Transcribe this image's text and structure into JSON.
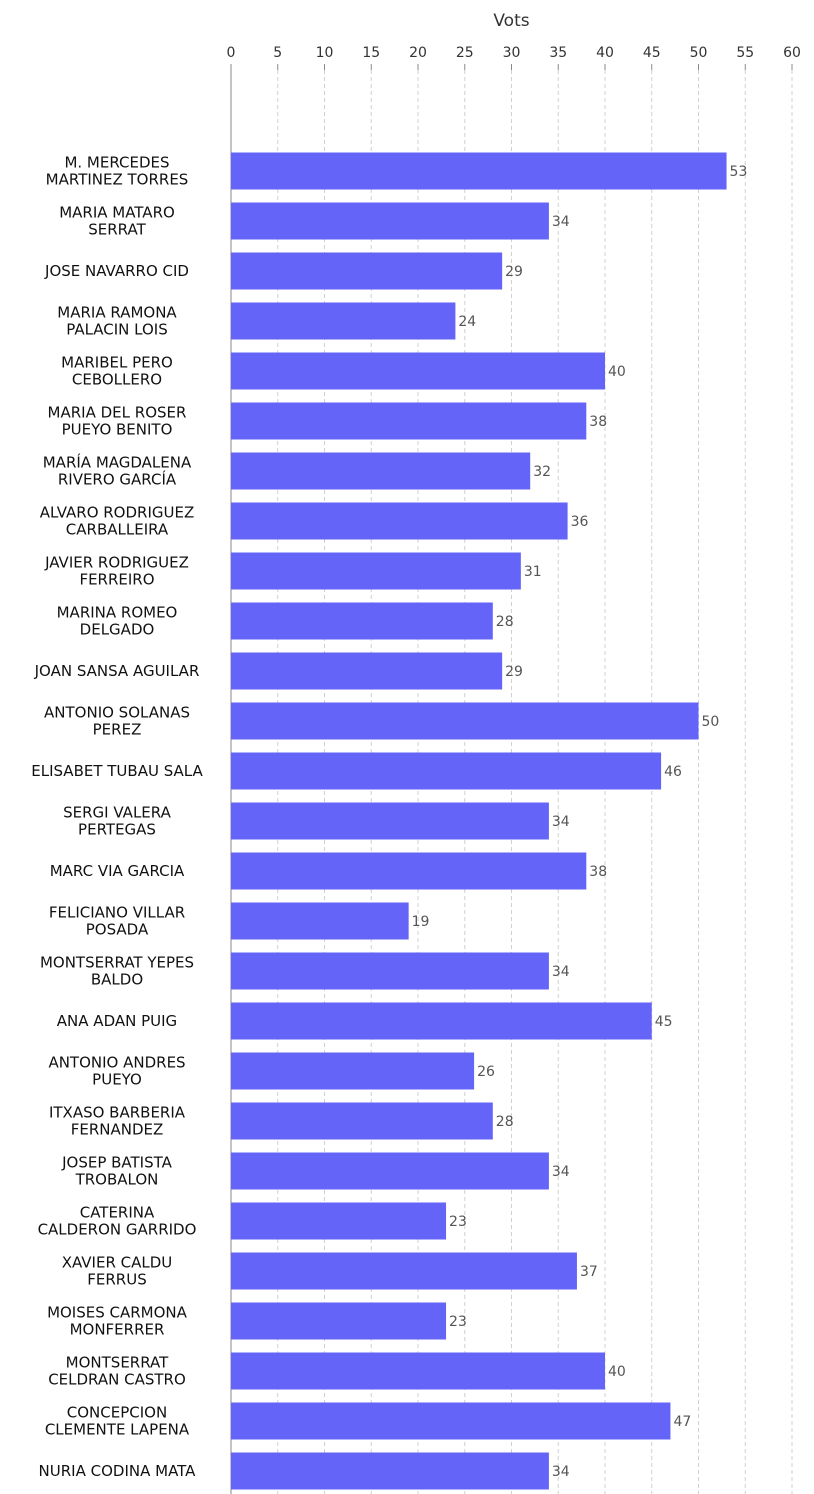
{
  "chart_data": {
    "type": "bar",
    "orientation": "horizontal",
    "xlabel": "Vots",
    "xlim": [
      0,
      60
    ],
    "x_ticks": [
      "0",
      "5",
      "10",
      "15",
      "20",
      "25",
      "30",
      "35",
      "40",
      "45",
      "50",
      "55",
      "60"
    ],
    "x_axis_position": "top",
    "grid": true,
    "bar_color": "#6464f8",
    "categories": [
      [
        "M. MERCEDES",
        "MARTINEZ TORRES"
      ],
      [
        "MARIA MATARO",
        "SERRAT"
      ],
      [
        "JOSE NAVARRO CID"
      ],
      [
        "MARIA RAMONA",
        "PALACIN LOIS"
      ],
      [
        "MARIBEL PERO",
        "CEBOLLERO"
      ],
      [
        "MARIA DEL ROSER",
        "PUEYO BENITO"
      ],
      [
        "MARÍA MAGDALENA",
        "RIVERO GARCÍA"
      ],
      [
        "ALVARO RODRIGUEZ",
        "CARBALLEIRA"
      ],
      [
        "JAVIER RODRIGUEZ",
        "FERREIRO"
      ],
      [
        "MARINA ROMEO",
        "DELGADO"
      ],
      [
        "JOAN SANSA AGUILAR"
      ],
      [
        "ANTONIO SOLANAS",
        "PEREZ"
      ],
      [
        "ELISABET TUBAU SALA"
      ],
      [
        "SERGI VALERA",
        "PERTEGAS"
      ],
      [
        "MARC VIA GARCIA"
      ],
      [
        "FELICIANO VILLAR",
        "POSADA"
      ],
      [
        "MONTSERRAT YEPES",
        "BALDO"
      ],
      [
        "ANA ADAN PUIG"
      ],
      [
        "ANTONIO ANDRES",
        "PUEYO"
      ],
      [
        "ITXASO BARBERIA",
        "FERNANDEZ"
      ],
      [
        "JOSEP BATISTA",
        "TROBALON"
      ],
      [
        "CATERINA",
        "CALDERON GARRIDO"
      ],
      [
        "XAVIER CALDU",
        "FERRUS"
      ],
      [
        "MOISES CARMONA",
        "MONFERRER"
      ],
      [
        "MONTSERRAT",
        "CELDRAN CASTRO"
      ],
      [
        "CONCEPCION",
        "CLEMENTE LAPENA"
      ],
      [
        "NURIA CODINA MATA"
      ]
    ],
    "values": [
      53,
      34,
      29,
      24,
      40,
      38,
      32,
      36,
      31,
      28,
      29,
      50,
      46,
      34,
      38,
      19,
      34,
      45,
      26,
      28,
      34,
      23,
      37,
      23,
      40,
      47,
      34
    ]
  }
}
